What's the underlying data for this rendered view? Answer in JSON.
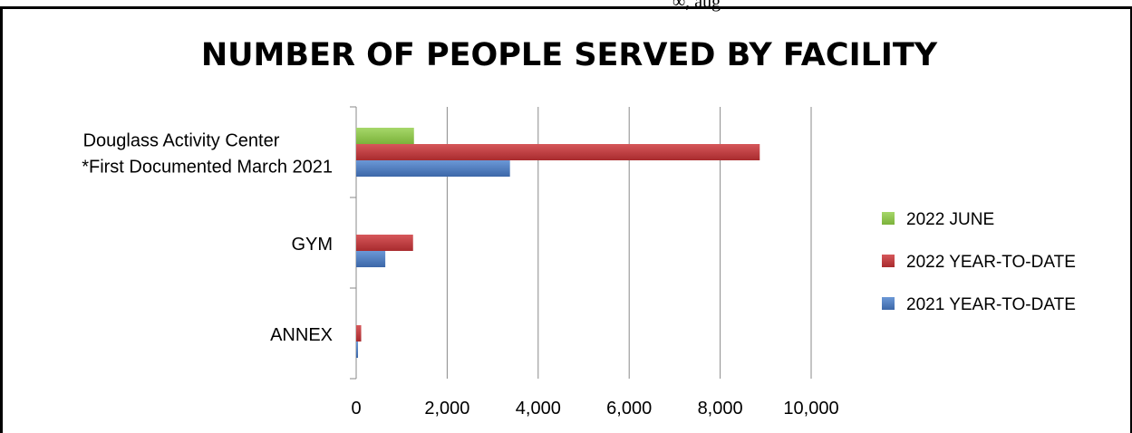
{
  "page_header_fragment": "∞, aug",
  "chart_data": {
    "type": "bar",
    "orientation": "horizontal",
    "title": "NUMBER OF PEOPLE SERVED BY FACILITY",
    "categories": [
      [
        "Douglass Activity Center",
        "*First Documented March 2021"
      ],
      [
        "GYM"
      ],
      [
        "ANNEX"
      ]
    ],
    "series": [
      {
        "name": "2022 JUNE",
        "color": "#8fc44a",
        "values": [
          1270,
          0,
          0
        ]
      },
      {
        "name": "2022 YEAR-TO-DATE",
        "color": "#c0393b",
        "values": [
          8870,
          1250,
          110
        ]
      },
      {
        "name": "2021 YEAR-TO-DATE",
        "color": "#4a7bbf",
        "values": [
          3380,
          640,
          40
        ]
      }
    ],
    "xlim": [
      0,
      10000
    ],
    "x_ticks": [
      "0",
      "2,000",
      "4,000",
      "6,000",
      "8,000",
      "10,000"
    ],
    "x_tick_values": [
      0,
      2000,
      4000,
      6000,
      8000,
      10000
    ],
    "grid": "vertical",
    "legend_position": "right"
  }
}
